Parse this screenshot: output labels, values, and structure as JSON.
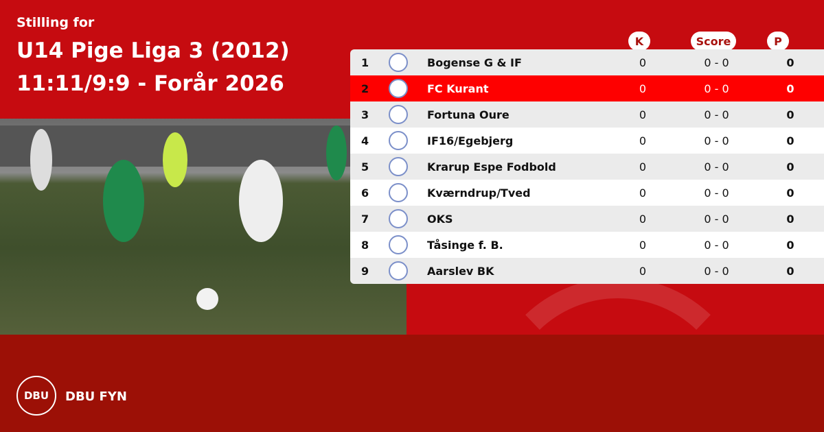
{
  "heading": {
    "line1": "Stilling for",
    "line2": "U14 Pige Liga 3 (2012)",
    "line3": "11:11/9:9 - Forår 2026"
  },
  "columns": {
    "k": "K",
    "score": "Score",
    "p": "P"
  },
  "rows": [
    {
      "pos": "1",
      "team": "Bogense G & IF",
      "k": "0",
      "score": "0 - 0",
      "p": "0"
    },
    {
      "pos": "2",
      "team": "FC Kurant",
      "k": "0",
      "score": "0 - 0",
      "p": "0",
      "highlight": true
    },
    {
      "pos": "3",
      "team": "Fortuna Oure",
      "k": "0",
      "score": "0 - 0",
      "p": "0"
    },
    {
      "pos": "4",
      "team": "IF16/Egebjerg",
      "k": "0",
      "score": "0 - 0",
      "p": "0"
    },
    {
      "pos": "5",
      "team": "Krarup Espe Fodbold",
      "k": "0",
      "score": "0 - 0",
      "p": "0"
    },
    {
      "pos": "6",
      "team": "Kværndrup/Tved",
      "k": "0",
      "score": "0 - 0",
      "p": "0"
    },
    {
      "pos": "7",
      "team": "OKS",
      "k": "0",
      "score": "0 - 0",
      "p": "0"
    },
    {
      "pos": "8",
      "team": "Tåsinge  f. B.",
      "k": "0",
      "score": "0 - 0",
      "p": "0"
    },
    {
      "pos": "9",
      "team": "Aarslev BK",
      "k": "0",
      "score": "0 - 0",
      "p": "0"
    }
  ],
  "footer": {
    "logo_text": "DBU",
    "brand": "DBU FYN"
  },
  "colors": {
    "top_bg": "#c60b10",
    "bottom_bg": "#9c1006",
    "highlight": "#fe0000"
  }
}
